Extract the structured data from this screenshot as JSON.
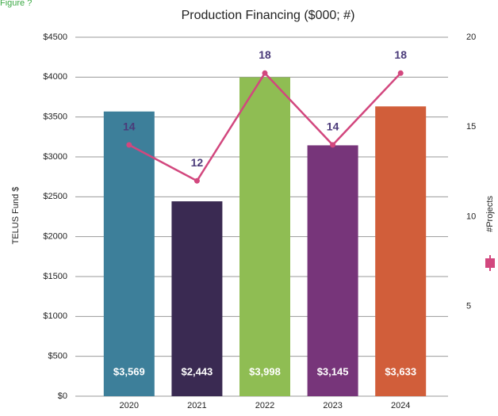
{
  "chart_data": {
    "type": "bar_line",
    "caption": "Figure ?",
    "title": "Production Financing ($000; #)",
    "y_label": "TELUS Fund $",
    "categories": [
      "2020",
      "2021",
      "2022",
      "2023",
      "2024"
    ],
    "series": [
      {
        "type": "bar",
        "colors": [
          "#3d7f9a",
          "#3a2a52",
          "#8fbd53",
          "#77357a",
          "#d15e3a"
        ],
        "values": [
          3569,
          2443,
          3998,
          3145,
          3633
        ],
        "value_labels": [
          "$3,569",
          "$2,443",
          "$3,998",
          "$3,145",
          "$3,633"
        ]
      },
      {
        "type": "line",
        "name": "#Projects",
        "color": "#d2477e",
        "axis": "y2",
        "values": [
          14,
          12,
          18,
          14,
          18
        ]
      }
    ],
    "ylim": [
      0,
      4500
    ],
    "yticks": [
      {
        "value": 0,
        "label": "$0"
      },
      {
        "value": 500,
        "label": "$500"
      },
      {
        "value": 1000,
        "label": "$1000"
      },
      {
        "value": 1500,
        "label": "$1500"
      },
      {
        "value": 2000,
        "label": "$2000"
      },
      {
        "value": 2500,
        "label": "$2500"
      },
      {
        "value": 3000,
        "label": "$3000"
      },
      {
        "value": 3500,
        "label": "$3500"
      },
      {
        "value": 4000,
        "label": "$4000"
      },
      {
        "value": 4500,
        "label": "$4500"
      }
    ],
    "y2lim": [
      0,
      20
    ],
    "y2ticks": [
      5,
      10,
      15,
      20
    ],
    "grid": true
  }
}
